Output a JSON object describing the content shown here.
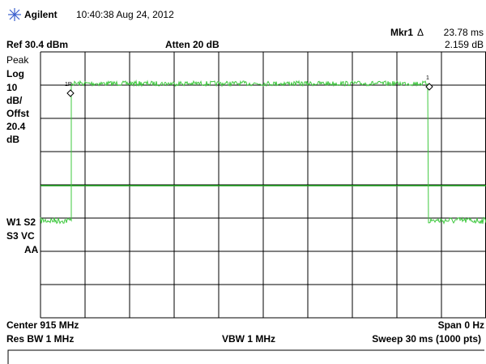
{
  "header": {
    "brand": "Agilent",
    "timestamp": "10:40:38 Aug 24, 2012"
  },
  "marker": {
    "name": "Mkr1",
    "delta": "Δ",
    "time": "23.78 ms",
    "level": "2.159 dB",
    "ref_label": "1R",
    "label": "1"
  },
  "top": {
    "ref": "Ref 30.4 dBm",
    "atten": "Atten 20 dB"
  },
  "left": {
    "detector": "Peak",
    "scale": "Log",
    "div": "10",
    "unit": "dB/",
    "offset_label": "Offst",
    "offset": "20.4",
    "offset_unit": "dB",
    "traces1": "W1 S2",
    "traces2": "S3 VC",
    "coupling": "AA"
  },
  "bottom": {
    "center": "Center 915 MHz",
    "span": "Span 0 Hz",
    "rbw": "Res BW 1 MHz",
    "vbw": "VBW 1 MHz",
    "sweep": "Sweep 30 ms (1000 pts)"
  }
}
